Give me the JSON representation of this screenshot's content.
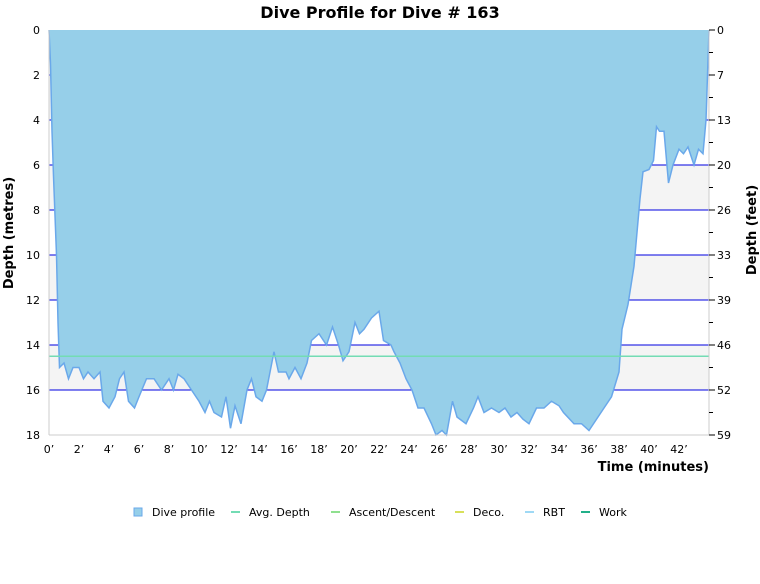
{
  "chart_data": {
    "type": "area",
    "title": "Dive Profile for Dive # 163",
    "xlabel": "Time (minutes)",
    "ylabel": "Depth (metres)",
    "ylabel_right": "Depth (feet)",
    "xlim": [
      0,
      44
    ],
    "ylim": [
      0,
      18
    ],
    "y_inverted": true,
    "x_ticks": [
      "0’",
      "2’",
      "4’",
      "6’",
      "8’",
      "10’",
      "12’",
      "14’",
      "16’",
      "18’",
      "20’",
      "22’",
      "24’",
      "26’",
      "28’",
      "30’",
      "32’",
      "34’",
      "36’",
      "38’",
      "40’",
      "42’"
    ],
    "y_ticks": [
      "0",
      "2",
      "4",
      "6",
      "8",
      "10",
      "12",
      "14",
      "16",
      "18"
    ],
    "y_ticks_right": [
      "0",
      "7",
      "13",
      "20",
      "26",
      "33",
      "39",
      "46",
      "52",
      "59"
    ],
    "grid": true,
    "legend_position": "bottom",
    "avg_depth": 14.5,
    "colors": {
      "profile_fill": "#96cfe9",
      "profile_line": "#6aa8ea",
      "avg": "#73dcb4",
      "ascent": "#8fe08f",
      "deco": "#d8e05a",
      "rbt": "#9fd9f5",
      "work": "#22b089",
      "grid": "#0000e0",
      "band": "#f4f4f4"
    },
    "legend": [
      {
        "name": "Dive profile",
        "color": "#96cfe9",
        "kind": "box"
      },
      {
        "name": "Avg. Depth",
        "color": "#73dcb4",
        "kind": "line"
      },
      {
        "name": "Ascent/Descent",
        "color": "#8fe08f",
        "kind": "line"
      },
      {
        "name": "Deco.",
        "color": "#d8e05a",
        "kind": "line"
      },
      {
        "name": "RBT",
        "color": "#9fd9f5",
        "kind": "line"
      },
      {
        "name": "Work",
        "color": "#22b089",
        "kind": "line"
      }
    ],
    "series": [
      {
        "name": "Dive profile",
        "time": [
          0,
          0.1,
          0.2,
          0.3,
          0.5,
          0.6,
          0.7,
          1.0,
          1.3,
          1.6,
          2.0,
          2.3,
          2.6,
          3.0,
          3.4,
          3.6,
          4.0,
          4.4,
          4.7,
          5.0,
          5.3,
          5.7,
          6.0,
          6.5,
          7.0,
          7.5,
          8.0,
          8.3,
          8.6,
          9.0,
          9.5,
          10,
          10.4,
          10.7,
          11,
          11.5,
          11.8,
          12.1,
          12.4,
          12.8,
          13.2,
          13.5,
          13.8,
          14.2,
          14.5,
          15.0,
          15.3,
          15.8,
          16.0,
          16.4,
          16.8,
          17.2,
          17.5,
          18.0,
          18.5,
          18.9,
          19.3,
          19.6,
          20.0,
          20.4,
          20.7,
          21.0,
          21.5,
          22.0,
          22.3,
          22.8,
          23.0,
          23.4,
          23.8,
          24.2,
          24.6,
          25.0,
          25.5,
          25.8,
          26.2,
          26.5,
          26.9,
          27.2,
          27.8,
          28.3,
          28.6,
          29.0,
          29.5,
          30.0,
          30.4,
          30.8,
          31.2,
          31.6,
          32.0,
          32.5,
          33.0,
          33.5,
          34.0,
          34.3,
          35.0,
          35.5,
          36.0,
          36.5,
          37.0,
          37.5,
          38.0,
          38.2,
          38.6,
          39.0,
          39.4,
          39.6,
          40.0,
          40.3,
          40.5,
          40.7,
          41.0,
          41.3,
          41.6,
          42.0,
          42.3,
          42.6,
          43.0,
          43.3,
          43.6,
          43.8,
          43.9,
          44
        ],
        "depth": [
          0,
          1.5,
          4.5,
          6.5,
          10,
          13,
          15,
          14.8,
          15.5,
          15,
          15,
          15.5,
          15.2,
          15.5,
          15.2,
          16.5,
          16.8,
          16.3,
          15.5,
          15.2,
          16.5,
          16.8,
          16.3,
          15.5,
          15.5,
          16,
          15.5,
          16,
          15.3,
          15.5,
          16,
          16.5,
          17,
          16.5,
          17,
          17.2,
          16.3,
          17.7,
          16.7,
          17.5,
          16,
          15.5,
          16.3,
          16.5,
          16,
          14.3,
          15.2,
          15.2,
          15.5,
          15,
          15.5,
          14.8,
          13.8,
          13.5,
          14,
          13.2,
          14,
          14.7,
          14.3,
          13,
          13.5,
          13.3,
          12.8,
          12.5,
          13.8,
          14,
          14.3,
          14.8,
          15.5,
          16,
          16.8,
          16.8,
          17.5,
          18,
          17.8,
          18,
          16.5,
          17.2,
          17.5,
          16.8,
          16.3,
          17,
          16.8,
          17,
          16.8,
          17.2,
          17,
          17.3,
          17.5,
          16.8,
          16.8,
          16.5,
          16.7,
          17,
          17.5,
          17.5,
          17.8,
          17.3,
          16.8,
          16.3,
          15.2,
          13.3,
          12.2,
          10.5,
          7.5,
          6.3,
          6.2,
          5.8,
          4.3,
          4.5,
          4.5,
          6.8,
          6.0,
          5.3,
          5.5,
          5.2,
          6,
          5.3,
          5.5,
          4.0,
          2,
          0
        ]
      }
    ]
  }
}
